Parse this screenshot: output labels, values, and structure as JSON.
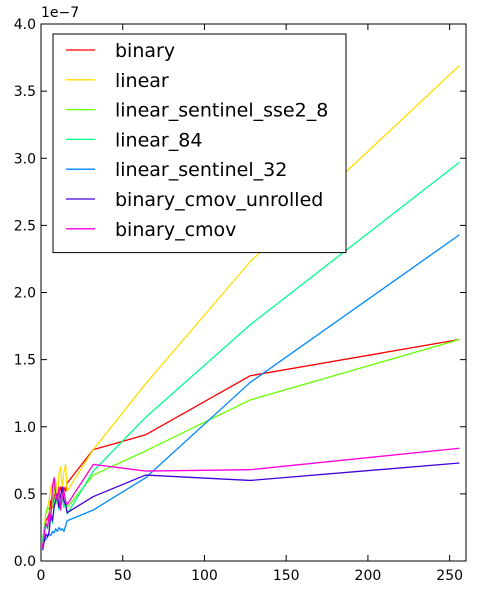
{
  "chart_data": {
    "type": "line",
    "title": "",
    "xlabel": "",
    "ylabel": "",
    "xlim": [
      0,
      260
    ],
    "ylim": [
      0,
      4.0
    ],
    "y_offset_text": "1e−7",
    "x_ticks": [
      "0",
      "50",
      "100",
      "150",
      "200",
      "250"
    ],
    "y_ticks": [
      "0.0",
      "0.5",
      "1.0",
      "1.5",
      "2.0",
      "2.5",
      "3.0",
      "3.5",
      "4.0"
    ],
    "grid": false,
    "legend_position": "top-left",
    "series": [
      {
        "name": "binary",
        "color": "#ff0000",
        "points": [
          [
            1,
            0.1
          ],
          [
            2,
            0.22
          ],
          [
            3,
            0.3
          ],
          [
            4,
            0.32
          ],
          [
            5,
            0.35
          ],
          [
            6,
            0.45
          ],
          [
            7,
            0.4
          ],
          [
            8,
            0.48
          ],
          [
            9,
            0.52
          ],
          [
            10,
            0.45
          ],
          [
            11,
            0.5
          ],
          [
            12,
            0.55
          ],
          [
            13,
            0.5
          ],
          [
            14,
            0.55
          ],
          [
            15,
            0.52
          ],
          [
            16,
            0.58
          ],
          [
            32,
            0.83
          ],
          [
            64,
            0.94
          ],
          [
            128,
            1.38
          ],
          [
            256,
            1.65
          ]
        ]
      },
      {
        "name": "linear",
        "color": "#ffdd00",
        "points": [
          [
            1,
            0.13
          ],
          [
            2,
            0.25
          ],
          [
            3,
            0.35
          ],
          [
            4,
            0.4
          ],
          [
            5,
            0.45
          ],
          [
            6,
            0.55
          ],
          [
            7,
            0.58
          ],
          [
            8,
            0.55
          ],
          [
            9,
            0.6
          ],
          [
            10,
            0.45
          ],
          [
            11,
            0.65
          ],
          [
            12,
            0.7
          ],
          [
            13,
            0.55
          ],
          [
            14,
            0.66
          ],
          [
            15,
            0.72
          ],
          [
            16,
            0.52
          ],
          [
            32,
            0.83
          ],
          [
            64,
            1.32
          ],
          [
            128,
            2.23
          ],
          [
            256,
            3.69
          ]
        ]
      },
      {
        "name": "linear_sentinel_sse2_8",
        "color": "#66ff00",
        "points": [
          [
            1,
            0.17
          ],
          [
            2,
            0.22
          ],
          [
            3,
            0.35
          ],
          [
            4,
            0.4
          ],
          [
            5,
            0.38
          ],
          [
            6,
            0.36
          ],
          [
            7,
            0.42
          ],
          [
            8,
            0.55
          ],
          [
            9,
            0.48
          ],
          [
            10,
            0.42
          ],
          [
            11,
            0.5
          ],
          [
            12,
            0.48
          ],
          [
            13,
            0.52
          ],
          [
            14,
            0.45
          ],
          [
            15,
            0.42
          ],
          [
            16,
            0.4
          ],
          [
            32,
            0.64
          ],
          [
            64,
            0.82
          ],
          [
            128,
            1.2
          ],
          [
            256,
            1.65
          ]
        ]
      },
      {
        "name": "linear_84",
        "color": "#00ff88",
        "points": [
          [
            1,
            0.14
          ],
          [
            2,
            0.25
          ],
          [
            3,
            0.28
          ],
          [
            4,
            0.24
          ],
          [
            5,
            0.3
          ],
          [
            6,
            0.35
          ],
          [
            7,
            0.28
          ],
          [
            8,
            0.4
          ],
          [
            9,
            0.5
          ],
          [
            10,
            0.45
          ],
          [
            11,
            0.38
          ],
          [
            12,
            0.42
          ],
          [
            13,
            0.48
          ],
          [
            14,
            0.4
          ],
          [
            15,
            0.45
          ],
          [
            16,
            0.35
          ],
          [
            32,
            0.67
          ],
          [
            64,
            1.07
          ],
          [
            128,
            1.76
          ],
          [
            256,
            2.97
          ]
        ]
      },
      {
        "name": "linear_sentinel_32",
        "color": "#0088ff",
        "points": [
          [
            1,
            0.12
          ],
          [
            2,
            0.15
          ],
          [
            3,
            0.16
          ],
          [
            4,
            0.18
          ],
          [
            5,
            0.2
          ],
          [
            6,
            0.19
          ],
          [
            7,
            0.22
          ],
          [
            8,
            0.21
          ],
          [
            9,
            0.24
          ],
          [
            10,
            0.22
          ],
          [
            11,
            0.25
          ],
          [
            12,
            0.23
          ],
          [
            13,
            0.24
          ],
          [
            14,
            0.22
          ],
          [
            15,
            0.26
          ],
          [
            16,
            0.3
          ],
          [
            32,
            0.38
          ],
          [
            64,
            0.62
          ],
          [
            128,
            1.33
          ],
          [
            256,
            2.43
          ]
        ]
      },
      {
        "name": "binary_cmov_unrolled",
        "color": "#4400dd",
        "points": [
          [
            1,
            0.08
          ],
          [
            2,
            0.15
          ],
          [
            3,
            0.2
          ],
          [
            4,
            0.18
          ],
          [
            5,
            0.22
          ],
          [
            6,
            0.35
          ],
          [
            7,
            0.3
          ],
          [
            8,
            0.4
          ],
          [
            9,
            0.45
          ],
          [
            10,
            0.5
          ],
          [
            11,
            0.4
          ],
          [
            12,
            0.48
          ],
          [
            13,
            0.55
          ],
          [
            14,
            0.45
          ],
          [
            15,
            0.42
          ],
          [
            16,
            0.36
          ],
          [
            32,
            0.48
          ],
          [
            64,
            0.64
          ],
          [
            128,
            0.6
          ],
          [
            256,
            0.73
          ]
        ]
      },
      {
        "name": "binary_cmov",
        "color": "#ff00dd",
        "points": [
          [
            1,
            0.1
          ],
          [
            2,
            0.2
          ],
          [
            3,
            0.28
          ],
          [
            4,
            0.25
          ],
          [
            5,
            0.35
          ],
          [
            6,
            0.32
          ],
          [
            7,
            0.55
          ],
          [
            8,
            0.62
          ],
          [
            9,
            0.5
          ],
          [
            10,
            0.45
          ],
          [
            11,
            0.55
          ],
          [
            12,
            0.38
          ],
          [
            13,
            0.48
          ],
          [
            14,
            0.52
          ],
          [
            15,
            0.45
          ],
          [
            16,
            0.42
          ],
          [
            32,
            0.72
          ],
          [
            64,
            0.67
          ],
          [
            128,
            0.68
          ],
          [
            256,
            0.84
          ]
        ]
      }
    ]
  }
}
